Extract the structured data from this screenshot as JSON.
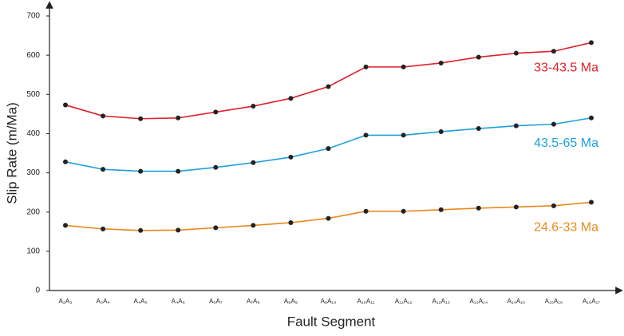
{
  "chart_data": {
    "type": "line",
    "xlabel": "Fault Segment",
    "ylabel": "Slip Rate (m/Ma)",
    "categories": [
      "A₂A₃",
      "A₃A₄",
      "A₄A₅",
      "A₄A₆",
      "A₆A₇",
      "A₇A₈",
      "A₈A₉",
      "A₉A₁₀",
      "A₁₀A₁₁",
      "A₁₁A₁₂",
      "A₁₂A₁₃",
      "A₁₃A₁₄",
      "A₁₄A₁₅",
      "A₁₅A₁₆",
      "A₁₆A₁₇"
    ],
    "series": [
      {
        "name": "33-43.5 Ma",
        "color": "#e0202a",
        "values": [
          473,
          445,
          438,
          440,
          455,
          470,
          490,
          520,
          570,
          570,
          580,
          595,
          605,
          610,
          632
        ]
      },
      {
        "name": "43.5-65 Ma",
        "color": "#1ea0dc",
        "values": [
          328,
          309,
          304,
          304,
          314,
          326,
          340,
          362,
          396,
          396,
          405,
          413,
          420,
          424,
          440
        ]
      },
      {
        "name": "24.6-33 Ma",
        "color": "#e8891a",
        "values": [
          166,
          157,
          153,
          154,
          160,
          166,
          173,
          184,
          202,
          202,
          206,
          210,
          213,
          216,
          225
        ]
      }
    ],
    "ylim": [
      0,
      700
    ],
    "yticks": [
      0,
      100,
      200,
      300,
      400,
      500,
      600,
      700
    ],
    "grid": false
  }
}
